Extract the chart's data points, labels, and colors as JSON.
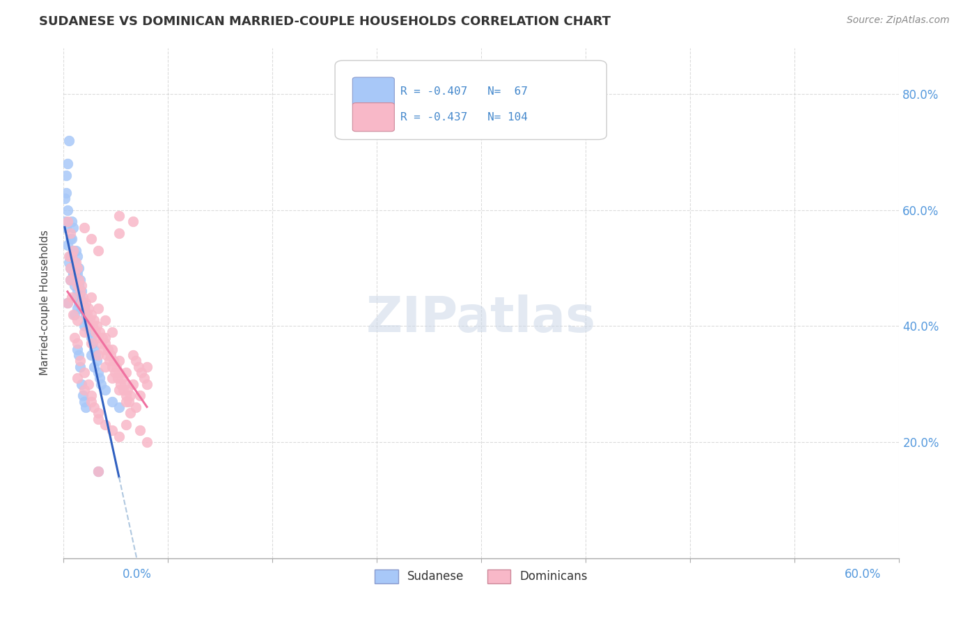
{
  "title": "SUDANESE VS DOMINICAN MARRIED-COUPLE HOUSEHOLDS CORRELATION CHART",
  "source": "Source: ZipAtlas.com",
  "ylabel": "Married-couple Households",
  "ytick_values": [
    0.2,
    0.4,
    0.6,
    0.8
  ],
  "xlim": [
    0.0,
    0.6
  ],
  "ylim": [
    0.0,
    0.88
  ],
  "color_sudanese": "#a8c8f8",
  "color_dominican": "#f8b8c8",
  "color_trendline_sudanese": "#3060c0",
  "color_trendline_dominican": "#f070a0",
  "color_trendline_ext": "#b0c8e0",
  "watermark": "ZIPatlas",
  "sudanese_points": [
    [
      0.005,
      0.52
    ],
    [
      0.005,
      0.55
    ],
    [
      0.005,
      0.5
    ],
    [
      0.005,
      0.48
    ],
    [
      0.007,
      0.57
    ],
    [
      0.007,
      0.53
    ],
    [
      0.007,
      0.49
    ],
    [
      0.008,
      0.51
    ],
    [
      0.008,
      0.47
    ],
    [
      0.009,
      0.53
    ],
    [
      0.009,
      0.49
    ],
    [
      0.009,
      0.45
    ],
    [
      0.01,
      0.52
    ],
    [
      0.01,
      0.49
    ],
    [
      0.01,
      0.46
    ],
    [
      0.01,
      0.43
    ],
    [
      0.011,
      0.5
    ],
    [
      0.011,
      0.47
    ],
    [
      0.011,
      0.44
    ],
    [
      0.012,
      0.48
    ],
    [
      0.012,
      0.45
    ],
    [
      0.013,
      0.46
    ],
    [
      0.013,
      0.43
    ],
    [
      0.014,
      0.44
    ],
    [
      0.015,
      0.43
    ],
    [
      0.015,
      0.4
    ],
    [
      0.016,
      0.42
    ],
    [
      0.017,
      0.41
    ],
    [
      0.018,
      0.4
    ],
    [
      0.019,
      0.39
    ],
    [
      0.02,
      0.38
    ],
    [
      0.02,
      0.35
    ],
    [
      0.021,
      0.37
    ],
    [
      0.022,
      0.36
    ],
    [
      0.022,
      0.33
    ],
    [
      0.023,
      0.35
    ],
    [
      0.024,
      0.34
    ],
    [
      0.025,
      0.32
    ],
    [
      0.026,
      0.31
    ],
    [
      0.027,
      0.3
    ],
    [
      0.003,
      0.68
    ],
    [
      0.004,
      0.72
    ],
    [
      0.003,
      0.6
    ],
    [
      0.006,
      0.58
    ],
    [
      0.006,
      0.55
    ],
    [
      0.006,
      0.52
    ],
    [
      0.007,
      0.49
    ],
    [
      0.002,
      0.66
    ],
    [
      0.002,
      0.63
    ],
    [
      0.001,
      0.62
    ],
    [
      0.001,
      0.58
    ],
    [
      0.002,
      0.57
    ],
    [
      0.003,
      0.54
    ],
    [
      0.004,
      0.51
    ],
    [
      0.008,
      0.42
    ],
    [
      0.01,
      0.36
    ],
    [
      0.011,
      0.35
    ],
    [
      0.012,
      0.33
    ],
    [
      0.013,
      0.3
    ],
    [
      0.014,
      0.28
    ],
    [
      0.015,
      0.27
    ],
    [
      0.016,
      0.26
    ],
    [
      0.03,
      0.29
    ],
    [
      0.035,
      0.27
    ],
    [
      0.04,
      0.26
    ],
    [
      0.003,
      0.44
    ],
    [
      0.025,
      0.15
    ]
  ],
  "dominican_points": [
    [
      0.005,
      0.56
    ],
    [
      0.006,
      0.52
    ],
    [
      0.007,
      0.53
    ],
    [
      0.008,
      0.49
    ],
    [
      0.009,
      0.51
    ],
    [
      0.01,
      0.5
    ],
    [
      0.01,
      0.47
    ],
    [
      0.011,
      0.48
    ],
    [
      0.012,
      0.46
    ],
    [
      0.013,
      0.47
    ],
    [
      0.013,
      0.44
    ],
    [
      0.014,
      0.45
    ],
    [
      0.015,
      0.43
    ],
    [
      0.016,
      0.44
    ],
    [
      0.017,
      0.42
    ],
    [
      0.018,
      0.43
    ],
    [
      0.019,
      0.41
    ],
    [
      0.02,
      0.42
    ],
    [
      0.021,
      0.4
    ],
    [
      0.022,
      0.41
    ],
    [
      0.023,
      0.39
    ],
    [
      0.024,
      0.4
    ],
    [
      0.025,
      0.38
    ],
    [
      0.026,
      0.39
    ],
    [
      0.027,
      0.37
    ],
    [
      0.028,
      0.38
    ],
    [
      0.029,
      0.36
    ],
    [
      0.03,
      0.37
    ],
    [
      0.031,
      0.35
    ],
    [
      0.032,
      0.36
    ],
    [
      0.033,
      0.34
    ],
    [
      0.034,
      0.35
    ],
    [
      0.035,
      0.33
    ],
    [
      0.036,
      0.34
    ],
    [
      0.037,
      0.32
    ],
    [
      0.038,
      0.33
    ],
    [
      0.039,
      0.31
    ],
    [
      0.04,
      0.32
    ],
    [
      0.041,
      0.3
    ],
    [
      0.042,
      0.31
    ],
    [
      0.043,
      0.29
    ],
    [
      0.044,
      0.3
    ],
    [
      0.045,
      0.28
    ],
    [
      0.046,
      0.29
    ],
    [
      0.047,
      0.27
    ],
    [
      0.048,
      0.28
    ],
    [
      0.05,
      0.35
    ],
    [
      0.052,
      0.34
    ],
    [
      0.054,
      0.33
    ],
    [
      0.056,
      0.32
    ],
    [
      0.058,
      0.31
    ],
    [
      0.06,
      0.3
    ],
    [
      0.015,
      0.57
    ],
    [
      0.02,
      0.55
    ],
    [
      0.025,
      0.53
    ],
    [
      0.04,
      0.59
    ],
    [
      0.04,
      0.56
    ],
    [
      0.05,
      0.58
    ],
    [
      0.003,
      0.58
    ],
    [
      0.004,
      0.52
    ],
    [
      0.005,
      0.48
    ],
    [
      0.006,
      0.45
    ],
    [
      0.003,
      0.44
    ],
    [
      0.007,
      0.42
    ],
    [
      0.008,
      0.38
    ],
    [
      0.01,
      0.37
    ],
    [
      0.012,
      0.34
    ],
    [
      0.015,
      0.32
    ],
    [
      0.018,
      0.3
    ],
    [
      0.02,
      0.28
    ],
    [
      0.022,
      0.26
    ],
    [
      0.025,
      0.25
    ],
    [
      0.03,
      0.23
    ],
    [
      0.035,
      0.22
    ],
    [
      0.04,
      0.21
    ],
    [
      0.045,
      0.23
    ],
    [
      0.055,
      0.22
    ],
    [
      0.06,
      0.2
    ],
    [
      0.048,
      0.25
    ],
    [
      0.052,
      0.26
    ],
    [
      0.01,
      0.31
    ],
    [
      0.015,
      0.29
    ],
    [
      0.02,
      0.27
    ],
    [
      0.025,
      0.24
    ],
    [
      0.03,
      0.38
    ],
    [
      0.035,
      0.36
    ],
    [
      0.04,
      0.34
    ],
    [
      0.045,
      0.32
    ],
    [
      0.05,
      0.3
    ],
    [
      0.055,
      0.28
    ],
    [
      0.06,
      0.33
    ],
    [
      0.02,
      0.45
    ],
    [
      0.025,
      0.43
    ],
    [
      0.03,
      0.41
    ],
    [
      0.035,
      0.39
    ],
    [
      0.005,
      0.5
    ],
    [
      0.01,
      0.41
    ],
    [
      0.015,
      0.39
    ],
    [
      0.02,
      0.37
    ],
    [
      0.025,
      0.35
    ],
    [
      0.03,
      0.33
    ],
    [
      0.035,
      0.31
    ],
    [
      0.04,
      0.29
    ],
    [
      0.045,
      0.27
    ],
    [
      0.025,
      0.15
    ]
  ]
}
